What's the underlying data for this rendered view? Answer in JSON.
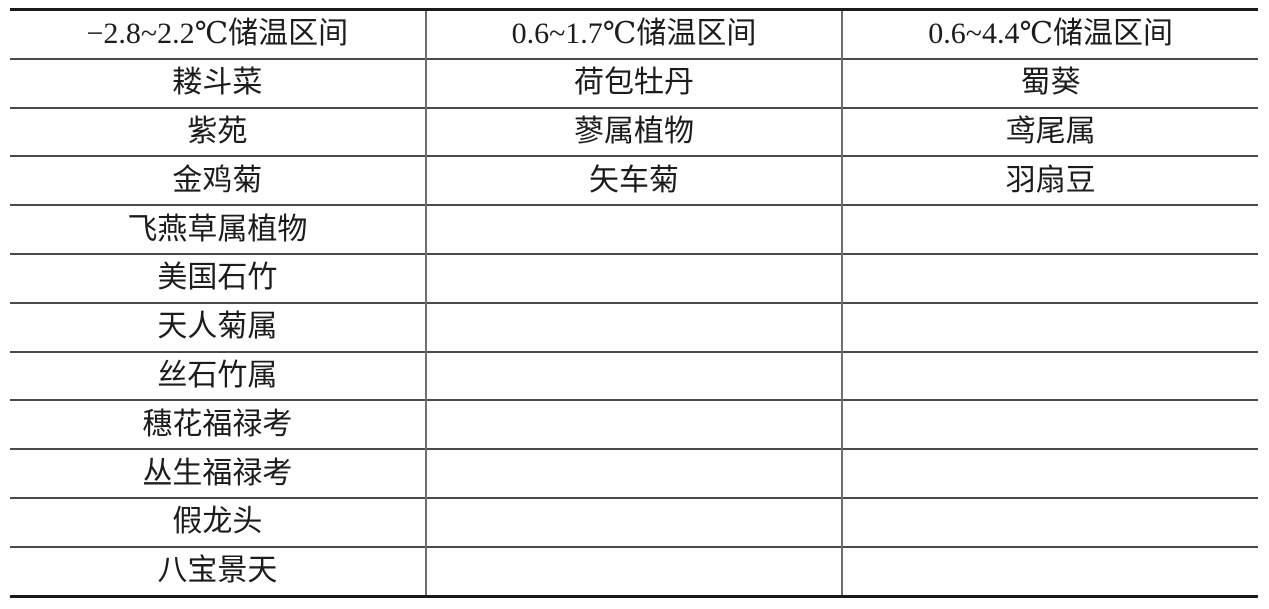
{
  "table": {
    "columns": [
      "−2.8~2.2℃储温区间",
      "0.6~1.7℃储温区间",
      "0.6~4.4℃储温区间"
    ],
    "rows": [
      [
        "耧斗菜",
        "荷包牡丹",
        "蜀葵"
      ],
      [
        "紫苑",
        "蓼属植物",
        "鸢尾属"
      ],
      [
        "金鸡菊",
        "矢车菊",
        "羽扇豆"
      ],
      [
        "飞燕草属植物",
        "",
        ""
      ],
      [
        "美国石竹",
        "",
        ""
      ],
      [
        "天人菊属",
        "",
        ""
      ],
      [
        "丝石竹属",
        "",
        ""
      ],
      [
        "穗花福禄考",
        "",
        ""
      ],
      [
        "丛生福禄考",
        "",
        ""
      ],
      [
        "假龙头",
        "",
        ""
      ],
      [
        "八宝景天",
        "",
        ""
      ]
    ]
  },
  "colors": {
    "background": "#ffffff",
    "text": "#1c1c1c",
    "outer_rule": "#1a1a1a",
    "row_rule": "#4a4a4a",
    "column_rule": "#6f6f6f"
  }
}
